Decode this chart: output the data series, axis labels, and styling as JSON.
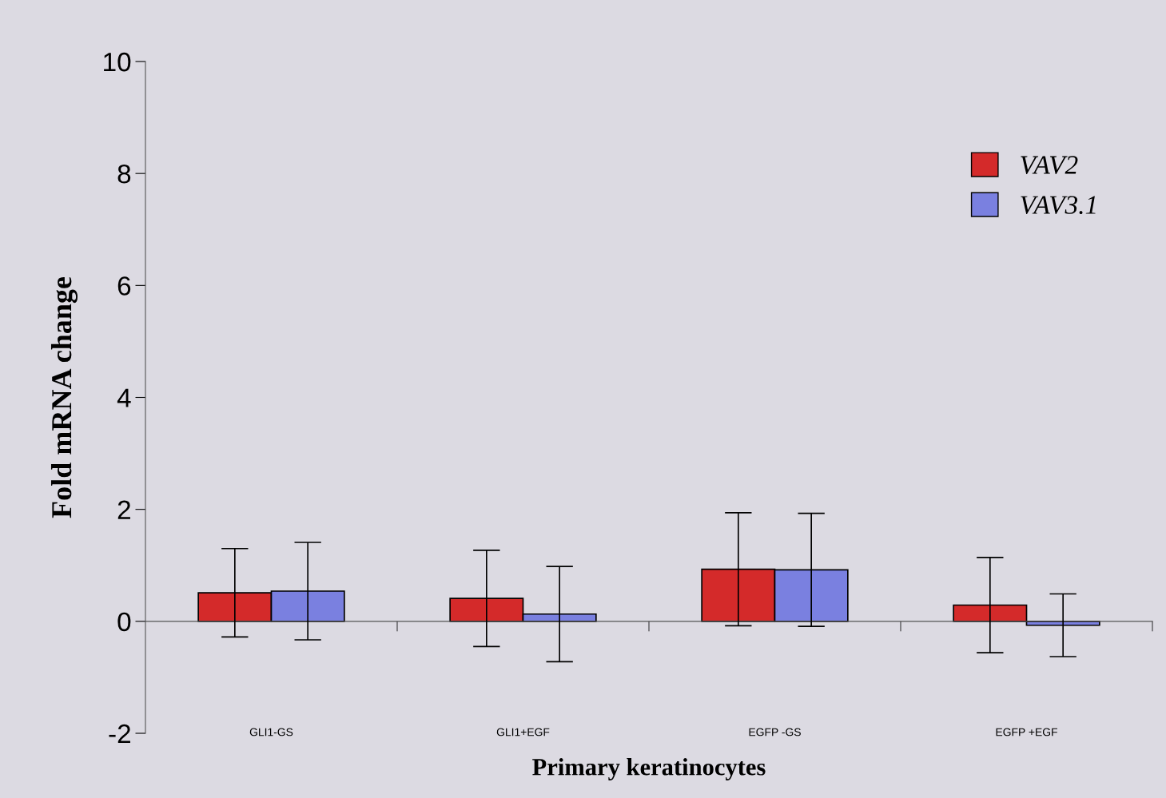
{
  "chart_data": {
    "type": "bar",
    "xlabel": "Primary keratinocytes",
    "ylabel": "Fold mRNA change",
    "categories": [
      "GLI1-GS",
      "GLI1+EGF",
      "EGFP -GS",
      "EGFP +EGF"
    ],
    "series": [
      {
        "name": "VAV2",
        "color": "#d42a2a",
        "values": [
          0.51,
          0.41,
          0.93,
          0.29
        ],
        "errors": [
          0.79,
          0.86,
          1.01,
          0.85
        ]
      },
      {
        "name": "VAV3.1",
        "color": "#7a80e0",
        "values": [
          0.54,
          0.13,
          0.92,
          -0.07
        ],
        "errors": [
          0.87,
          0.85,
          1.01,
          0.56
        ]
      }
    ],
    "ylim": [
      -2,
      10
    ],
    "yticks": [
      -2,
      0,
      2,
      4,
      6,
      8,
      10
    ],
    "legend": "top right"
  }
}
